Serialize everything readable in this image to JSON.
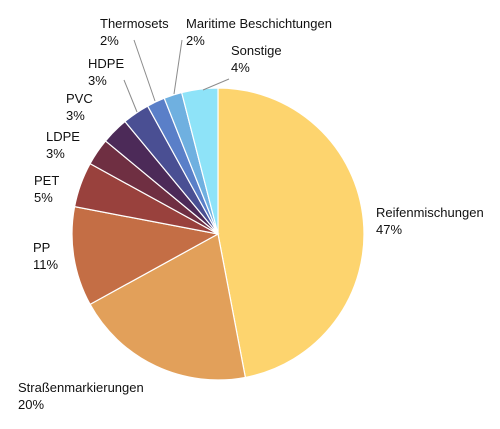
{
  "chart_data": {
    "type": "pie",
    "title": "",
    "slices": [
      {
        "label": "Reifenmischungen",
        "value": 47,
        "value_label": "47%",
        "color": "#FDD46E"
      },
      {
        "label": "Straßenmarkierungen",
        "value": 20,
        "value_label": "20%",
        "color": "#E2A05A"
      },
      {
        "label": "PP",
        "value": 11,
        "value_label": "11%",
        "color": "#C46E45"
      },
      {
        "label": "PET",
        "value": 5,
        "value_label": "5%",
        "color": "#99413D"
      },
      {
        "label": "LDPE",
        "value": 3,
        "value_label": "3%",
        "color": "#6F2F42"
      },
      {
        "label": "PVC",
        "value": 3,
        "value_label": "3%",
        "color": "#4C2A58"
      },
      {
        "label": "HDPE",
        "value": 3,
        "value_label": "3%",
        "color": "#4A4F93"
      },
      {
        "label": "Thermosets",
        "value": 2,
        "value_label": "2%",
        "color": "#5A7FC8"
      },
      {
        "label": "Maritime Beschichtungen",
        "value": 2,
        "value_label": "2%",
        "color": "#6FB0E0"
      },
      {
        "label": "Sonstige",
        "value": 4,
        "value_label": "4%",
        "color": "#8EE3F8"
      }
    ],
    "start_angle": "12 o'clock",
    "direction": "clockwise",
    "legend": "none"
  }
}
